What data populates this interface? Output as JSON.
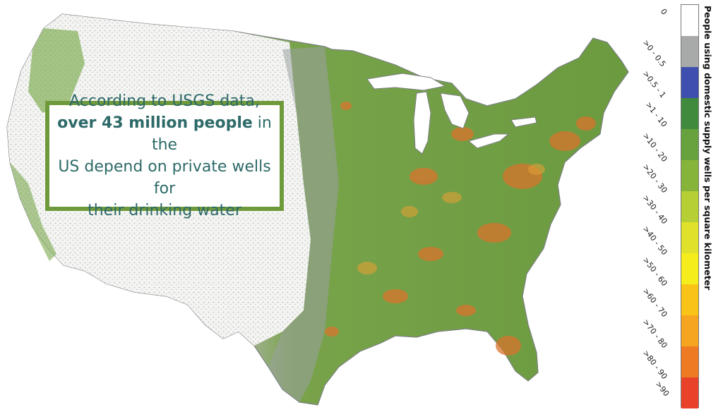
{
  "callout": {
    "line1": "According to USGS data,",
    "bold": "over 43 million people",
    "line2_rest": " in the",
    "line3": "US depend on private wells for",
    "line4": "their drinking water"
  },
  "legend": {
    "title": "People using domestic supply wells per square kilometer",
    "classes": [
      {
        "label": "0",
        "color": "#ffffff"
      },
      {
        "label": ">0 - 0.5",
        "color": "#a7aaa9"
      },
      {
        "label": ">0.5 - 1",
        "color": "#3f4fb0"
      },
      {
        "label": ">1 - 10",
        "color": "#3f8a3c"
      },
      {
        "label": ">10 - 20",
        "color": "#68a23e"
      },
      {
        "label": ">20 - 30",
        "color": "#86b43a"
      },
      {
        "label": ">30 - 40",
        "color": "#b5cf34"
      },
      {
        "label": ">40 - 50",
        "color": "#dfe12b"
      },
      {
        "label": ">50 - 60",
        "color": "#f6ee1c"
      },
      {
        "label": ">60 - 70",
        "color": "#f9c318"
      },
      {
        "label": ">70 - 80",
        "color": "#f5a51f"
      },
      {
        "label": ">80 - 90",
        "color": "#ee7a24"
      },
      {
        "label": ">90",
        "color": "#e8432a"
      }
    ]
  },
  "map": {
    "fill_colors": {
      "land_west": "#eef0ec",
      "land_east": "#6f9f45",
      "grey_dots": "#8a8f92",
      "hot": "#d9742c",
      "hot2": "#e0a035",
      "water": "#ffffff",
      "border": "#7c8083"
    }
  }
}
